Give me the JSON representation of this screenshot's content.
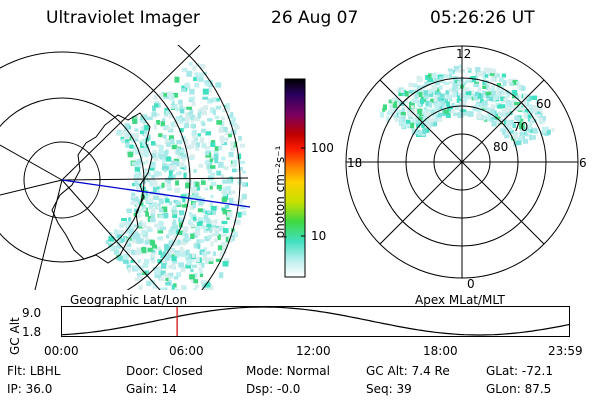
{
  "header": {
    "instrument": "Ultraviolet Imager",
    "date": "26 Aug 07",
    "time": "05:26:26 UT"
  },
  "colorbar": {
    "unit_label": "photon cm⁻²s⁻¹",
    "ticks": [
      "100",
      "10"
    ],
    "colors": [
      "#000000",
      "#2a0060",
      "#7a0060",
      "#c00000",
      "#ff2000",
      "#ff8000",
      "#ffd000",
      "#c8e000",
      "#40d840",
      "#40e0c0",
      "#c0f0f0",
      "#ffffff"
    ]
  },
  "left_map": {
    "label": "Geographic Lat/Lon"
  },
  "right_map": {
    "label": "Apex  MLat/MLT",
    "mlt_labels": {
      "top": "12",
      "left": "18",
      "right": "6",
      "bottom": "0"
    },
    "lat_labels": [
      "60",
      "70",
      "80"
    ]
  },
  "altitude_plot": {
    "ylabel": "GC Alt",
    "yticks": [
      "9.0",
      "1.8"
    ],
    "xticks": [
      "00:00",
      "06:00",
      "12:00",
      "18:00",
      "23:59"
    ],
    "current_time_marker_hours": 5.44
  },
  "status": {
    "flt": {
      "label": "Flt:",
      "value": "LBHL"
    },
    "door": {
      "label": "Door:",
      "value": "Closed"
    },
    "mode": {
      "label": "Mode:",
      "value": "Normal"
    },
    "gc_alt": {
      "label": "GC Alt:",
      "value": "7.4 Re"
    },
    "glat": {
      "label": "GLat:",
      "value": "-72.1"
    },
    "ip": {
      "label": "IP:",
      "value": "36.0"
    },
    "gain": {
      "label": "Gain:",
      "value": "14"
    },
    "dsp": {
      "label": "Dsp:",
      "value": "-0.0"
    },
    "seq": {
      "label": "Seq:",
      "value": "39"
    },
    "glon": {
      "label": "GLon:",
      "value": "87.5"
    }
  }
}
